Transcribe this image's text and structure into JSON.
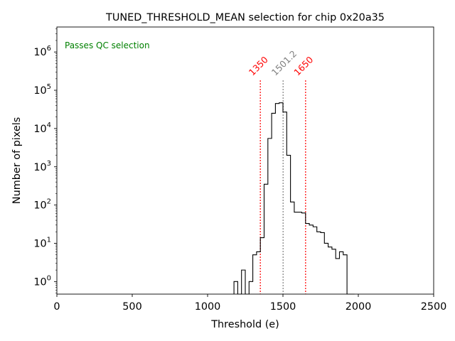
{
  "chart_data": {
    "type": "histogram",
    "title": "TUNED_THRESHOLD_MEAN selection for chip 0x20a35",
    "xlabel": "Threshold (e)",
    "ylabel": "Number of pixels",
    "xlim": [
      0,
      2500
    ],
    "ylim": [
      0.47,
      4500000
    ],
    "yscale": "log",
    "xticks": [
      0,
      500,
      1000,
      1500,
      2000,
      2500
    ],
    "xtick_labels": [
      "0",
      "500",
      "1000",
      "1500",
      "2000",
      "2500"
    ],
    "yticks": [
      1,
      10,
      100,
      1000,
      10000,
      100000,
      1000000
    ],
    "ytick_labels": [
      {
        "base": "10",
        "exp": "0"
      },
      {
        "base": "10",
        "exp": "1"
      },
      {
        "base": "10",
        "exp": "2"
      },
      {
        "base": "10",
        "exp": "3"
      },
      {
        "base": "10",
        "exp": "4"
      },
      {
        "base": "10",
        "exp": "5"
      },
      {
        "base": "10",
        "exp": "6"
      }
    ],
    "bin_width": 25,
    "bins": [
      {
        "x": 1175,
        "count": 1
      },
      {
        "x": 1200,
        "count": 0
      },
      {
        "x": 1225,
        "count": 2
      },
      {
        "x": 1250,
        "count": 0
      },
      {
        "x": 1275,
        "count": 1
      },
      {
        "x": 1300,
        "count": 5
      },
      {
        "x": 1325,
        "count": 6
      },
      {
        "x": 1350,
        "count": 14
      },
      {
        "x": 1375,
        "count": 350
      },
      {
        "x": 1400,
        "count": 5500
      },
      {
        "x": 1425,
        "count": 25000
      },
      {
        "x": 1450,
        "count": 45000
      },
      {
        "x": 1475,
        "count": 47000
      },
      {
        "x": 1500,
        "count": 27000
      },
      {
        "x": 1525,
        "count": 2000
      },
      {
        "x": 1550,
        "count": 120
      },
      {
        "x": 1575,
        "count": 65
      },
      {
        "x": 1600,
        "count": 65
      },
      {
        "x": 1625,
        "count": 62
      },
      {
        "x": 1650,
        "count": 33
      },
      {
        "x": 1675,
        "count": 30
      },
      {
        "x": 1700,
        "count": 27
      },
      {
        "x": 1725,
        "count": 20
      },
      {
        "x": 1750,
        "count": 19
      },
      {
        "x": 1775,
        "count": 10
      },
      {
        "x": 1800,
        "count": 8
      },
      {
        "x": 1825,
        "count": 7
      },
      {
        "x": 1850,
        "count": 4
      },
      {
        "x": 1875,
        "count": 6
      },
      {
        "x": 1900,
        "count": 5
      },
      {
        "x": 1925,
        "count": 0
      },
      {
        "x": 1950,
        "count": 0
      }
    ],
    "series_color": "#000000",
    "vlines": [
      {
        "x": 1350,
        "label": "1350",
        "color": "#ff0000",
        "style": "dotted"
      },
      {
        "x": 1501.2,
        "label": "1501.2",
        "color": "#808080",
        "style": "dotted"
      },
      {
        "x": 1650,
        "label": "1650",
        "color": "#ff0000",
        "style": "dotted"
      }
    ],
    "annotation": {
      "text": "Passes QC selection",
      "color": "#008000",
      "placement": "top-left"
    },
    "grid": false
  }
}
